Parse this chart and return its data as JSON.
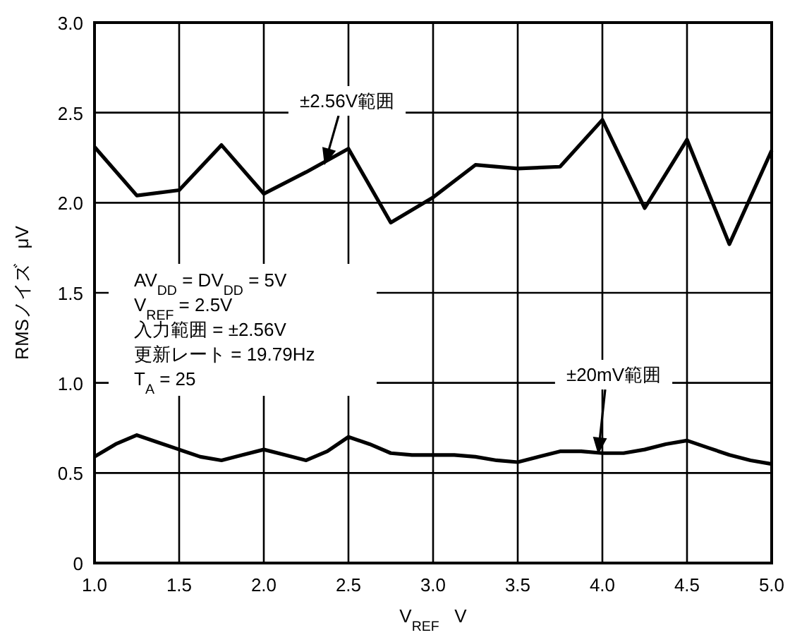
{
  "chart_data": {
    "type": "line",
    "x": [
      1.0,
      1.25,
      1.5,
      1.75,
      2.0,
      2.25,
      2.5,
      2.75,
      3.0,
      3.25,
      3.5,
      3.75,
      4.0,
      4.25,
      4.5,
      4.75,
      5.0
    ],
    "series": [
      {
        "color": "#000000",
        "values": [
          2.31,
          2.04,
          2.07,
          2.32,
          2.05,
          2.17,
          2.3,
          1.89,
          2.03,
          2.21,
          2.19,
          2.2,
          2.46,
          1.97,
          2.35,
          1.77,
          2.29
        ]
      },
      {
        "color": "#000000",
        "x": [
          1.0,
          1.125,
          1.25,
          1.375,
          1.5,
          1.625,
          1.75,
          1.875,
          2.0,
          2.125,
          2.25,
          2.375,
          2.5,
          2.625,
          2.75,
          2.875,
          3.0,
          3.125,
          3.25,
          3.375,
          3.5,
          3.625,
          3.75,
          3.875,
          4.0,
          4.125,
          4.25,
          4.375,
          4.5,
          4.625,
          4.75,
          4.875,
          5.0
        ],
        "values": [
          0.59,
          0.66,
          0.71,
          0.67,
          0.63,
          0.59,
          0.57,
          0.6,
          0.63,
          0.6,
          0.57,
          0.62,
          0.7,
          0.66,
          0.61,
          0.6,
          0.6,
          0.6,
          0.59,
          0.57,
          0.56,
          0.59,
          0.62,
          0.62,
          0.61,
          0.61,
          0.63,
          0.66,
          0.68,
          0.64,
          0.6,
          0.57,
          0.55
        ]
      }
    ],
    "xlabel": "V$_{REF}$   V",
    "ylabel": "RMSノイズ   μV",
    "xlim": [
      1.0,
      5.0
    ],
    "ylim": [
      0,
      3.0
    ],
    "xticks": [
      {
        "value": 1,
        "label": "1.0"
      },
      1.5,
      {
        "value": 2,
        "label": "2.0"
      },
      2.5,
      {
        "value": 3,
        "label": "3.0"
      },
      3.5,
      {
        "value": 4,
        "label": "4.0"
      },
      4.5,
      {
        "value": 5,
        "label": "5.0"
      }
    ],
    "yticks": [
      0,
      0.5,
      {
        "value": 1,
        "label": "1.0"
      },
      1.5,
      {
        "value": 2,
        "label": "2.0"
      },
      2.5,
      {
        "value": 3,
        "label": "3.0"
      }
    ],
    "grid": true,
    "marker": "none",
    "line_style": "solid",
    "annotations": [
      "±2.56V範囲",
      "±20mV範囲",
      "AV$_{DD}$ = DV$_{DD}$ = 5V",
      "V$_{REF}$ = 2.5V",
      "入力範囲 = ±2.56V",
      "更新レート = 19.79Hz",
      "T$_{A}$ = 25"
    ]
  }
}
